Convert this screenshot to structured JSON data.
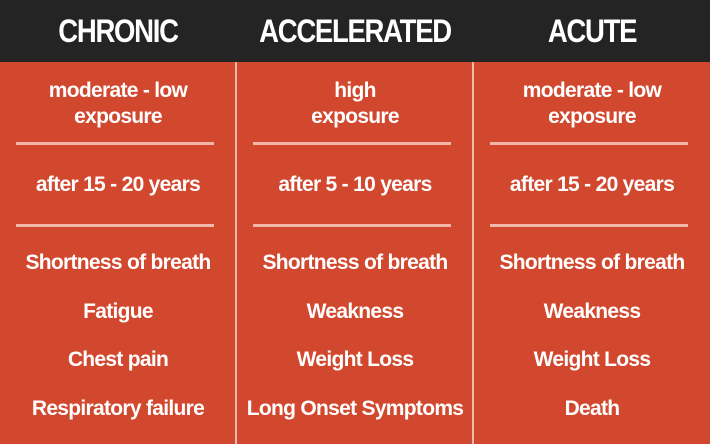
{
  "columns": [
    {
      "title": "CHRONIC",
      "exposure_line1": "moderate - low",
      "exposure_line2": "exposure",
      "onset": "after 15 - 20 years",
      "symptoms": [
        "Shortness of breath",
        "Fatigue",
        "Chest pain",
        "Respiratory failure"
      ]
    },
    {
      "title": "ACCELERATED",
      "exposure_line1": "high",
      "exposure_line2": "exposure",
      "onset": "after 5 - 10 years",
      "symptoms": [
        "Shortness of breath",
        "Weakness",
        "Weight Loss",
        "Long Onset Symptoms"
      ]
    },
    {
      "title": "ACUTE",
      "exposure_line1": "moderate - low",
      "exposure_line2": "exposure",
      "onset": "after 15 - 20 years",
      "symptoms": [
        "Shortness of breath",
        "Weakness",
        "Weight Loss",
        "Death"
      ]
    }
  ],
  "colors": {
    "background": "#d2482f",
    "header": "#242424",
    "text": "#ffffff",
    "divider": "#f2b7a9"
  }
}
